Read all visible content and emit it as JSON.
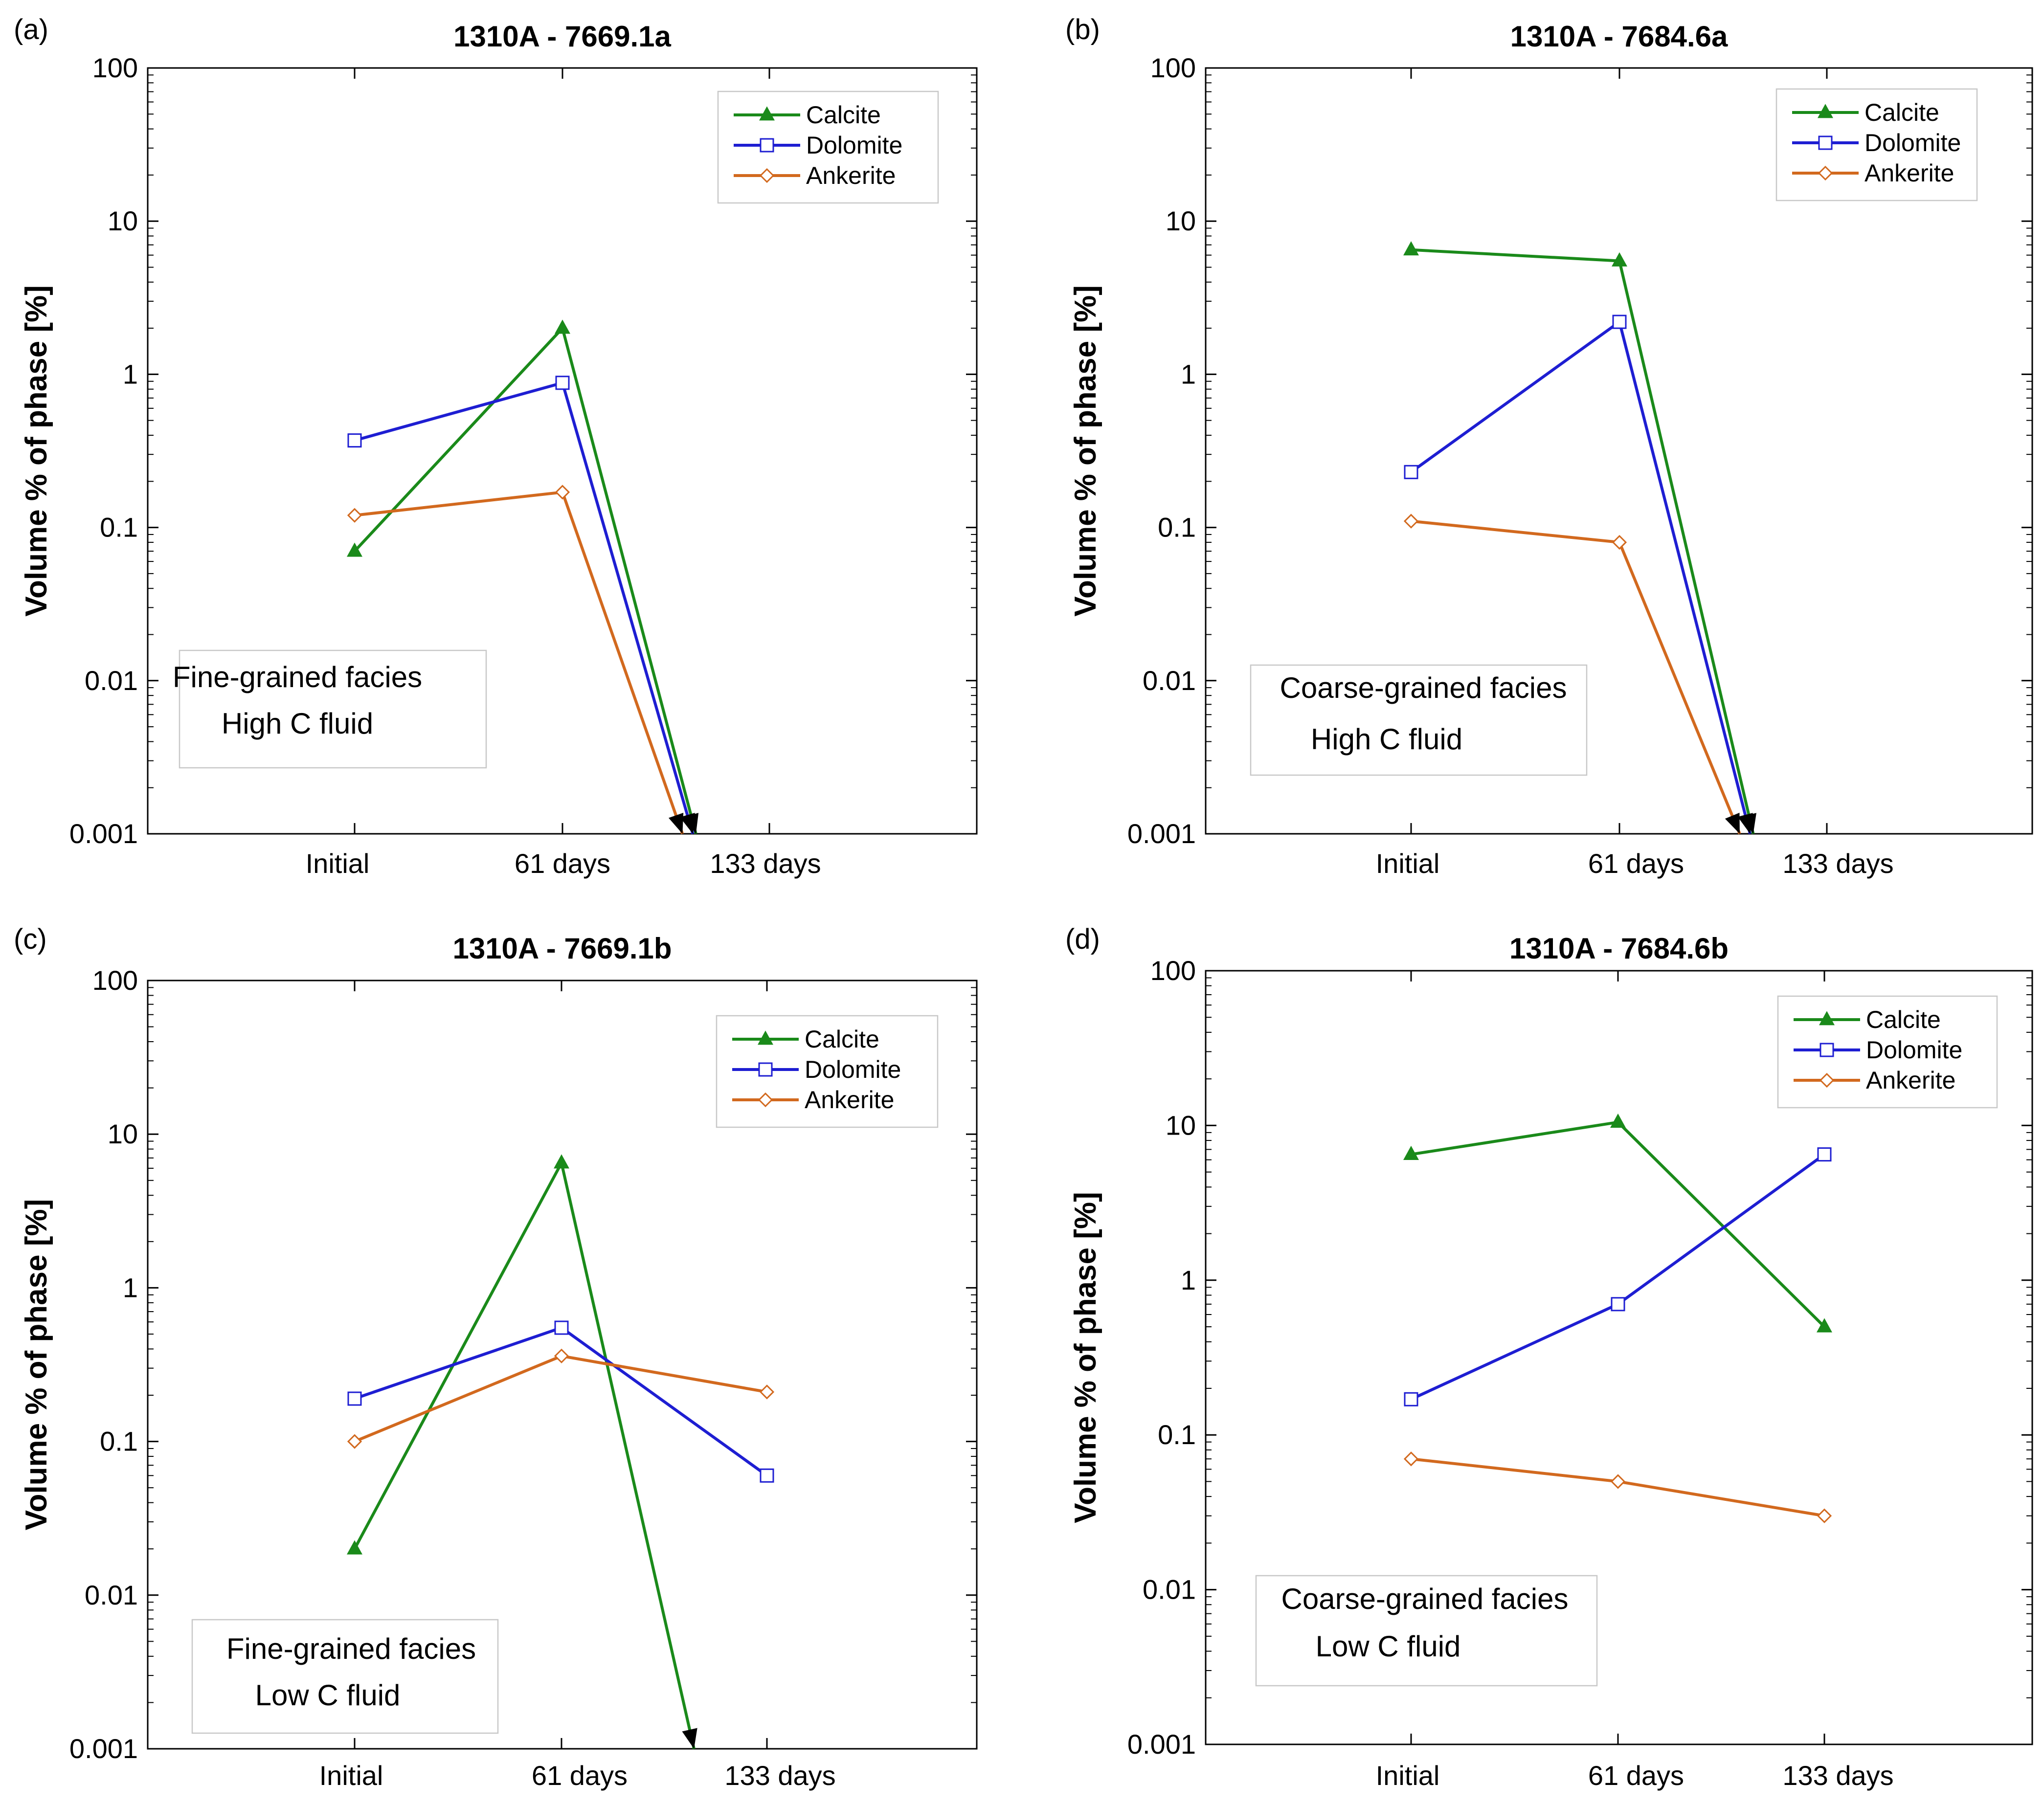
{
  "chart_data": [
    {
      "panel": "(a)",
      "type": "line",
      "title": "1310A - 7669.1a",
      "ylabel": "Volume % of phase [%]",
      "xlabel": "",
      "yscale": "log",
      "ylim": [
        0.001,
        100
      ],
      "yticks": [
        "0.001",
        "0.01",
        "0.1",
        "1",
        "10",
        "100"
      ],
      "categories": [
        "Initial",
        "61 days",
        "133 days"
      ],
      "legend": "top-right",
      "note": [
        "Fine-grained facies",
        "High C fluid"
      ],
      "series": [
        {
          "name": "Calcite",
          "color": "#1a8a1a",
          "marker": "triangle",
          "values": [
            0.07,
            2.0,
            null
          ],
          "drop_to_axis": true
        },
        {
          "name": "Dolomite",
          "color": "#1e1ed2",
          "marker": "square",
          "values": [
            0.37,
            0.88,
            null
          ],
          "drop_to_axis": true
        },
        {
          "name": "Ankerite",
          "color": "#d2691e",
          "marker": "diamond",
          "values": [
            0.12,
            0.17,
            null
          ],
          "drop_to_axis": true
        }
      ]
    },
    {
      "panel": "(b)",
      "type": "line",
      "title": "1310A - 7684.6a",
      "ylabel": "Volume % of phase [%]",
      "xlabel": "",
      "yscale": "log",
      "ylim": [
        0.001,
        100
      ],
      "yticks": [
        "0.001",
        "0.01",
        "0.1",
        "1",
        "10",
        "100"
      ],
      "categories": [
        "Initial",
        "61 days",
        "133 days"
      ],
      "legend": "top-right",
      "note": [
        "Coarse-grained facies",
        "High C fluid"
      ],
      "series": [
        {
          "name": "Calcite",
          "color": "#1a8a1a",
          "marker": "triangle",
          "values": [
            6.5,
            5.5,
            null
          ],
          "drop_to_axis": true
        },
        {
          "name": "Dolomite",
          "color": "#1e1ed2",
          "marker": "square",
          "values": [
            0.23,
            2.2,
            null
          ],
          "drop_to_axis": true
        },
        {
          "name": "Ankerite",
          "color": "#d2691e",
          "marker": "diamond",
          "values": [
            0.11,
            0.08,
            null
          ],
          "drop_to_axis": true
        }
      ]
    },
    {
      "panel": "(c)",
      "type": "line",
      "title": "1310A - 7669.1b",
      "ylabel": "Volume % of phase [%]",
      "xlabel": "",
      "yscale": "log",
      "ylim": [
        0.001,
        100
      ],
      "yticks": [
        "0.001",
        "0.01",
        "0.1",
        "1",
        "10",
        "100"
      ],
      "categories": [
        "Initial",
        "61 days",
        "133 days"
      ],
      "legend": "top-right",
      "note": [
        "Fine-grained facies",
        "Low C fluid"
      ],
      "series": [
        {
          "name": "Calcite",
          "color": "#1a8a1a",
          "marker": "triangle",
          "values": [
            0.02,
            6.5,
            null
          ],
          "drop_to_axis": true
        },
        {
          "name": "Dolomite",
          "color": "#1e1ed2",
          "marker": "square",
          "values": [
            0.19,
            0.55,
            0.06
          ],
          "drop_to_axis": false
        },
        {
          "name": "Ankerite",
          "color": "#d2691e",
          "marker": "diamond",
          "values": [
            0.1,
            0.36,
            0.21
          ],
          "drop_to_axis": false
        }
      ]
    },
    {
      "panel": "(d)",
      "type": "line",
      "title": "1310A - 7684.6b",
      "ylabel": "Volume % of phase [%]",
      "xlabel": "",
      "yscale": "log",
      "ylim": [
        0.001,
        100
      ],
      "yticks": [
        "0.001",
        "0.01",
        "0.1",
        "1",
        "10",
        "100"
      ],
      "categories": [
        "Initial",
        "61 days",
        "133 days"
      ],
      "legend": "top-right",
      "note": [
        "Coarse-grained facies",
        "Low C fluid"
      ],
      "series": [
        {
          "name": "Calcite",
          "color": "#1a8a1a",
          "marker": "triangle",
          "values": [
            6.5,
            10.5,
            0.5
          ],
          "drop_to_axis": false
        },
        {
          "name": "Dolomite",
          "color": "#1e1ed2",
          "marker": "square",
          "values": [
            0.17,
            0.7,
            6.5
          ],
          "drop_to_axis": false
        },
        {
          "name": "Ankerite",
          "color": "#d2691e",
          "marker": "diamond",
          "values": [
            0.07,
            0.05,
            0.03
          ],
          "drop_to_axis": false
        }
      ]
    }
  ]
}
